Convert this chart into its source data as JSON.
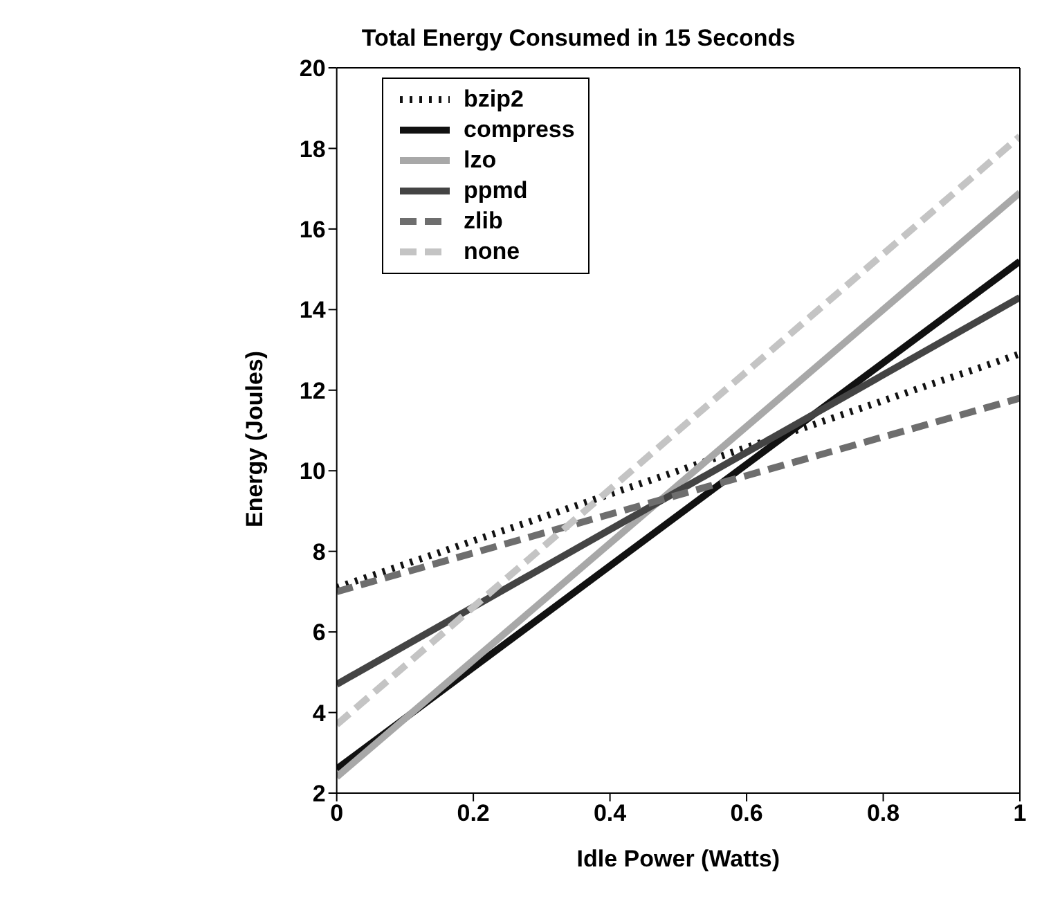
{
  "chart_data": {
    "type": "line",
    "title": "Total Energy Consumed in 15 Seconds",
    "xlabel": "Idle Power (Watts)",
    "ylabel": "Energy (Joules)",
    "x": [
      0,
      1
    ],
    "series": [
      {
        "name": "bzip2",
        "color": "#111111",
        "values": [
          7.1,
          12.9
        ],
        "line_style": "dotted"
      },
      {
        "name": "compress",
        "color": "#111111",
        "values": [
          2.6,
          15.2
        ],
        "line_style": "solid"
      },
      {
        "name": "lzo",
        "color": "#a8a8a8",
        "values": [
          2.4,
          16.9
        ],
        "line_style": "solid"
      },
      {
        "name": "ppmd",
        "color": "#444444",
        "values": [
          4.7,
          14.3
        ],
        "line_style": "solid"
      },
      {
        "name": "zlib",
        "color": "#6e6e6e",
        "values": [
          7.0,
          11.8
        ],
        "line_style": "dashed"
      },
      {
        "name": "none",
        "color": "#c4c4c4",
        "values": [
          3.7,
          18.3
        ],
        "line_style": "dashed"
      }
    ],
    "xlim": [
      0,
      1
    ],
    "xticks": [
      0,
      0.2,
      0.4,
      0.6,
      0.8,
      1
    ],
    "ylim": [
      2,
      20
    ],
    "yticks": [
      2,
      4,
      6,
      8,
      10,
      12,
      14,
      16,
      18,
      20
    ],
    "grid": false,
    "legend": "top left",
    "marker": "none"
  }
}
